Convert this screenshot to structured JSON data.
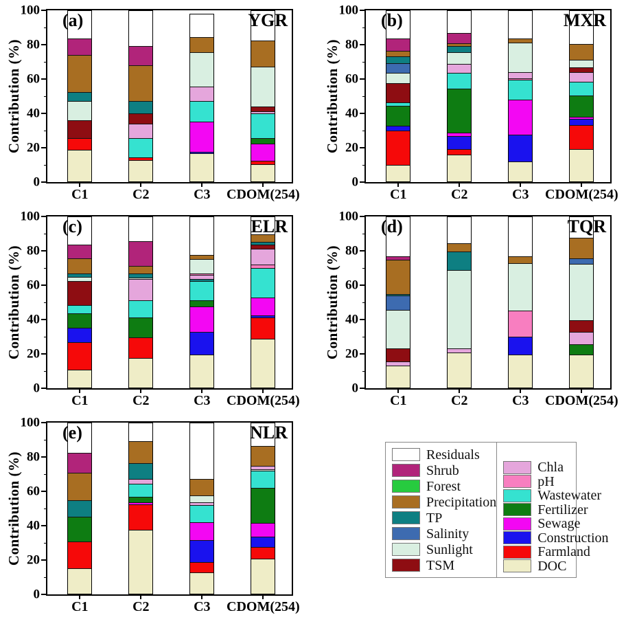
{
  "colors": {
    "Residuals": "#FFFFFF",
    "Shrub": "#B1247A",
    "Forest": "#27CB3F",
    "Precipitation": "#A86E22",
    "TP": "#0E7F82",
    "Salinity": "#3D6BB0",
    "Sunlight": "#D9EFE1",
    "TSM": "#8E0D12",
    "Chla": "#E5A6DC",
    "pH": "#F87EC0",
    "Wastewater": "#35E2D0",
    "Fertilizer": "#0E7C12",
    "Sewage": "#F307F3",
    "Construction": "#1A12EE",
    "Farmland": "#F60909",
    "DOC": "#EFEDC7"
  },
  "legend": {
    "columns": [
      [
        "Residuals",
        "Shrub",
        "Forest",
        "Precipitation",
        "TP",
        "Salinity",
        "Sunlight",
        "TSM"
      ],
      [
        "Chla",
        "pH",
        "Wastewater",
        "Fertilizer",
        "Sewage",
        "Construction",
        "Farmland",
        "DOC"
      ]
    ]
  },
  "chart_data": [
    {
      "type": "bar",
      "stacked": true,
      "panel_label": "(a)",
      "region": "YGR",
      "ylabel": "Contribution (%)",
      "ylim": [
        0,
        100
      ],
      "yticks": [
        0,
        20,
        40,
        60,
        80,
        100
      ],
      "yticks_minor": [
        10,
        30,
        50,
        70,
        90
      ],
      "categories": [
        "C1",
        "C2",
        "C3",
        "CDOM(254)"
      ],
      "stacks": {
        "C1": [
          [
            "DOC",
            18.5
          ],
          [
            "Farmland",
            7
          ],
          [
            "TSM",
            10.5
          ],
          [
            "Sunlight",
            11
          ],
          [
            "TP",
            5.5
          ],
          [
            "Precipitation",
            21.5
          ],
          [
            "Shrub",
            10
          ],
          [
            "Residuals",
            16
          ]
        ],
        "C2": [
          [
            "DOC",
            12.5
          ],
          [
            "Farmland",
            1.5
          ],
          [
            "Wastewater",
            11.5
          ],
          [
            "Chla",
            8.5
          ],
          [
            "TSM",
            6
          ],
          [
            "TP",
            7
          ],
          [
            "Precipitation",
            21
          ],
          [
            "Shrub",
            11.5
          ],
          [
            "Residuals",
            20.5
          ]
        ],
        "C3": [
          [
            "DOC",
            16.5
          ],
          [
            "Construction",
            1
          ],
          [
            "Sewage",
            17.5
          ],
          [
            "Wastewater",
            12
          ],
          [
            "Chla",
            8.5
          ],
          [
            "Sunlight",
            20.5
          ],
          [
            "Precipitation",
            8.5
          ],
          [
            "Residuals",
            13.5
          ]
        ],
        "CDOM(254)": [
          [
            "DOC",
            10
          ],
          [
            "Farmland",
            2
          ],
          [
            "Sewage",
            10
          ],
          [
            "Fertilizer",
            3.5
          ],
          [
            "Wastewater",
            14.5
          ],
          [
            "Chla",
            1
          ],
          [
            "TSM",
            3
          ],
          [
            "Sunlight",
            23.5
          ],
          [
            "Precipitation",
            15
          ],
          [
            "Residuals",
            17.5
          ]
        ]
      }
    },
    {
      "type": "bar",
      "stacked": true,
      "panel_label": "(b)",
      "region": "MXR",
      "ylabel": "Contribution (%)",
      "ylim": [
        0,
        100
      ],
      "yticks": [
        0,
        20,
        40,
        60,
        80,
        100
      ],
      "yticks_minor": [
        10,
        30,
        50,
        70,
        90
      ],
      "categories": [
        "C1",
        "C2",
        "C3",
        "CDOM(254)"
      ],
      "stacks": {
        "C1": [
          [
            "DOC",
            9.5
          ],
          [
            "Farmland",
            20.5
          ],
          [
            "Construction",
            2.5
          ],
          [
            "Fertilizer",
            12
          ],
          [
            "Wastewater",
            2
          ],
          [
            "TSM",
            11
          ],
          [
            "Sunlight",
            6
          ],
          [
            "Salinity",
            6
          ],
          [
            "TP",
            4
          ],
          [
            "Precipitation",
            3
          ],
          [
            "Shrub",
            7.5
          ],
          [
            "Residuals",
            16
          ]
        ],
        "C2": [
          [
            "DOC",
            15.5
          ],
          [
            "Farmland",
            3.5
          ],
          [
            "Construction",
            7.5
          ],
          [
            "Sewage",
            2
          ],
          [
            "Fertilizer",
            26
          ],
          [
            "Wastewater",
            9
          ],
          [
            "Chla",
            5.5
          ],
          [
            "Sunlight",
            7
          ],
          [
            "TP",
            3.5
          ],
          [
            "Precipitation",
            1.5
          ],
          [
            "Shrub",
            6
          ],
          [
            "Residuals",
            13
          ]
        ],
        "C3": [
          [
            "DOC",
            11.5
          ],
          [
            "Construction",
            16
          ],
          [
            "Sewage",
            20.5
          ],
          [
            "Wastewater",
            11.5
          ],
          [
            "pH",
            1
          ],
          [
            "Chla",
            3.5
          ],
          [
            "Sunlight",
            17.5
          ],
          [
            "Precipitation",
            2.5
          ],
          [
            "Residuals",
            16
          ]
        ],
        "CDOM(254)": [
          [
            "DOC",
            19
          ],
          [
            "Farmland",
            14
          ],
          [
            "Construction",
            3.5
          ],
          [
            "Sewage",
            1.5
          ],
          [
            "Fertilizer",
            12.5
          ],
          [
            "Wastewater",
            8
          ],
          [
            "Chla",
            5.5
          ],
          [
            "TSM",
            3
          ],
          [
            "Sunlight",
            4.5
          ],
          [
            "Precipitation",
            9
          ],
          [
            "Residuals",
            19.5
          ]
        ]
      }
    },
    {
      "type": "bar",
      "stacked": true,
      "panel_label": "(c)",
      "region": "ELR",
      "ylabel": "Contribution (%)",
      "ylim": [
        0,
        100
      ],
      "yticks": [
        0,
        20,
        40,
        60,
        80,
        100
      ],
      "yticks_minor": [
        10,
        30,
        50,
        70,
        90
      ],
      "categories": [
        "C1",
        "C2",
        "C3",
        "CDOM(254)"
      ],
      "stacks": {
        "C1": [
          [
            "DOC",
            10.5
          ],
          [
            "Farmland",
            16
          ],
          [
            "Construction",
            8.5
          ],
          [
            "Fertilizer",
            8.5
          ],
          [
            "Wastewater",
            5
          ],
          [
            "TSM",
            14
          ],
          [
            "Sunlight",
            2.5
          ],
          [
            "TP",
            2
          ],
          [
            "Precipitation",
            9
          ],
          [
            "Shrub",
            8
          ],
          [
            "Residuals",
            16
          ]
        ],
        "C2": [
          [
            "DOC",
            17.5
          ],
          [
            "Farmland",
            12
          ],
          [
            "Fertilizer",
            11.5
          ],
          [
            "Wastewater",
            10
          ],
          [
            "Chla",
            12.5
          ],
          [
            "Sunlight",
            1
          ],
          [
            "TP",
            2.5
          ],
          [
            "Precipitation",
            4.5
          ],
          [
            "Shrub",
            14.5
          ],
          [
            "Residuals",
            14
          ]
        ],
        "C3": [
          [
            "DOC",
            19.5
          ],
          [
            "Construction",
            13
          ],
          [
            "Sewage",
            15
          ],
          [
            "Fertilizer",
            3.5
          ],
          [
            "Wastewater",
            11.5
          ],
          [
            "TP",
            1
          ],
          [
            "Chla",
            2.5
          ],
          [
            "pH",
            1
          ],
          [
            "Sunlight",
            8.5
          ],
          [
            "Precipitation",
            2.5
          ],
          [
            "Residuals",
            22
          ]
        ],
        "CDOM(254)": [
          [
            "DOC",
            28.5
          ],
          [
            "Farmland",
            12.5
          ],
          [
            "Construction",
            1.5
          ],
          [
            "Sewage",
            10.5
          ],
          [
            "Wastewater",
            17
          ],
          [
            "pH",
            2
          ],
          [
            "Chla",
            9.5
          ],
          [
            "TSM",
            2.5
          ],
          [
            "TP",
            1.5
          ],
          [
            "Precipitation",
            4.5
          ],
          [
            "Residuals",
            10
          ]
        ]
      }
    },
    {
      "type": "bar",
      "stacked": true,
      "panel_label": "(d)",
      "region": "TQR",
      "ylabel": "Contribution (%)",
      "ylim": [
        0,
        100
      ],
      "yticks": [
        0,
        20,
        40,
        60,
        80,
        100
      ],
      "yticks_minor": [
        10,
        30,
        50,
        70,
        90
      ],
      "categories": [
        "C1",
        "C2",
        "C3",
        "CDOM(254)"
      ],
      "stacks": {
        "C1": [
          [
            "DOC",
            13
          ],
          [
            "Chla",
            2.5
          ],
          [
            "TSM",
            7.5
          ],
          [
            "Sunlight",
            22.5
          ],
          [
            "Salinity",
            8.5
          ],
          [
            "TP",
            1
          ],
          [
            "Precipitation",
            20
          ],
          [
            "Shrub",
            2
          ],
          [
            "Residuals",
            23
          ]
        ],
        "C2": [
          [
            "DOC",
            20.5
          ],
          [
            "Chla",
            2.5
          ],
          [
            "Sunlight",
            46
          ],
          [
            "TP",
            11
          ],
          [
            "Precipitation",
            4.5
          ],
          [
            "Residuals",
            15.5
          ]
        ],
        "C3": [
          [
            "DOC",
            19.5
          ],
          [
            "Construction",
            10.5
          ],
          [
            "pH",
            15
          ],
          [
            "Sunlight",
            28
          ],
          [
            "Precipitation",
            4
          ],
          [
            "Residuals",
            23
          ]
        ],
        "CDOM(254)": [
          [
            "DOC",
            19.5
          ],
          [
            "Fertilizer",
            6
          ],
          [
            "Chla",
            7
          ],
          [
            "TSM",
            7
          ],
          [
            "Sunlight",
            33
          ],
          [
            "Salinity",
            3.5
          ],
          [
            "Precipitation",
            12
          ],
          [
            "Residuals",
            12
          ]
        ]
      }
    },
    {
      "type": "bar",
      "stacked": true,
      "panel_label": "(e)",
      "region": "NLR",
      "ylabel": "Contribution (%)",
      "ylim": [
        0,
        100
      ],
      "yticks": [
        0,
        20,
        40,
        60,
        80,
        100
      ],
      "yticks_minor": [
        10,
        30,
        50,
        70,
        90
      ],
      "categories": [
        "C1",
        "C2",
        "C3",
        "CDOM(254)"
      ],
      "stacks": {
        "C1": [
          [
            "DOC",
            15
          ],
          [
            "Farmland",
            15.5
          ],
          [
            "Fertilizer",
            14.5
          ],
          [
            "TP",
            10
          ],
          [
            "Precipitation",
            16
          ],
          [
            "Shrub",
            11.5
          ],
          [
            "Residuals",
            17.5
          ]
        ],
        "C2": [
          [
            "DOC",
            37.5
          ],
          [
            "Farmland",
            15
          ],
          [
            "Sewage",
            1
          ],
          [
            "Fertilizer",
            3.5
          ],
          [
            "Wastewater",
            7.5
          ],
          [
            "Chla",
            3
          ],
          [
            "TP",
            9
          ],
          [
            "Precipitation",
            13
          ],
          [
            "Residuals",
            10.5
          ]
        ],
        "C3": [
          [
            "DOC",
            12.5
          ],
          [
            "Farmland",
            6
          ],
          [
            "Construction",
            13
          ],
          [
            "Sewage",
            10.5
          ],
          [
            "Wastewater",
            10
          ],
          [
            "Chla",
            1.5
          ],
          [
            "Sunlight",
            4
          ],
          [
            "Precipitation",
            10
          ],
          [
            "Residuals",
            32.5
          ]
        ],
        "CDOM(254)": [
          [
            "DOC",
            20.5
          ],
          [
            "Farmland",
            7
          ],
          [
            "Construction",
            6
          ],
          [
            "Sewage",
            8
          ],
          [
            "Fertilizer",
            20.5
          ],
          [
            "Wastewater",
            10
          ],
          [
            "Sunlight",
            1
          ],
          [
            "Chla",
            2
          ],
          [
            "Precipitation",
            11.5
          ],
          [
            "Residuals",
            13.5
          ]
        ]
      }
    }
  ]
}
